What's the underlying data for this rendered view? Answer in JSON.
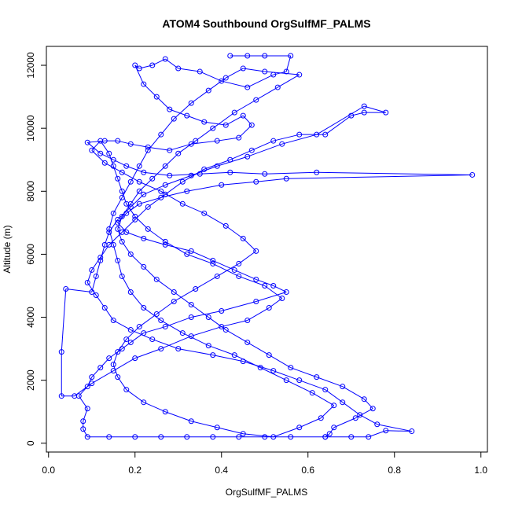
{
  "chart_data": {
    "type": "line",
    "title": "ATOM4 Southbound OrgSulfMF_PALMS",
    "xlabel": "OrgSulfMF_PALMS",
    "ylabel": "Altitude (m)",
    "xlim": [
      -0.005,
      1.015
    ],
    "ylim": [
      -280,
      12600
    ],
    "x_ticks": [
      "0.0",
      "0.2",
      "0.4",
      "0.6",
      "0.8",
      "1.0"
    ],
    "x_tick_values": [
      0,
      0.2,
      0.4,
      0.6,
      0.8,
      1.0
    ],
    "y_ticks": [
      "0",
      "2000",
      "4000",
      "6000",
      "8000",
      "10000",
      "12000"
    ],
    "y_tick_values": [
      0,
      2000,
      4000,
      6000,
      8000,
      10000,
      12000
    ],
    "grid": false,
    "marker": "open-circle",
    "series": [
      {
        "color": "#0000ff",
        "values": [
          [
            0.42,
            12300
          ],
          [
            0.46,
            12300
          ],
          [
            0.5,
            12300
          ],
          [
            0.56,
            12300
          ],
          [
            0.55,
            11800
          ],
          [
            0.52,
            11700
          ],
          [
            0.46,
            11300
          ],
          [
            0.4,
            11500
          ],
          [
            0.35,
            11800
          ],
          [
            0.3,
            11900
          ],
          [
            0.27,
            12200
          ],
          [
            0.24,
            12000
          ],
          [
            0.21,
            11900
          ],
          [
            0.2,
            12000
          ],
          [
            0.22,
            11400
          ],
          [
            0.25,
            11000
          ],
          [
            0.28,
            10600
          ],
          [
            0.32,
            10400
          ],
          [
            0.36,
            10200
          ],
          [
            0.41,
            10100
          ],
          [
            0.45,
            10400
          ],
          [
            0.47,
            10100
          ],
          [
            0.44,
            9700
          ],
          [
            0.39,
            9600
          ],
          [
            0.33,
            9500
          ],
          [
            0.28,
            9300
          ],
          [
            0.23,
            9400
          ],
          [
            0.19,
            9500
          ],
          [
            0.16,
            9600
          ],
          [
            0.13,
            9600
          ],
          [
            0.09,
            9550
          ],
          [
            0.12,
            9200
          ],
          [
            0.15,
            9000
          ],
          [
            0.18,
            8800
          ],
          [
            0.22,
            8600
          ],
          [
            0.28,
            8500
          ],
          [
            0.35,
            8550
          ],
          [
            0.42,
            8600
          ],
          [
            0.5,
            8550
          ],
          [
            0.62,
            8600
          ],
          [
            0.98,
            8520
          ],
          [
            0.55,
            8400
          ],
          [
            0.48,
            8300
          ],
          [
            0.4,
            8200
          ],
          [
            0.32,
            8000
          ],
          [
            0.26,
            7800
          ],
          [
            0.21,
            7600
          ],
          [
            0.18,
            7300
          ],
          [
            0.16,
            7000
          ],
          [
            0.18,
            6700
          ],
          [
            0.22,
            6500
          ],
          [
            0.27,
            6300
          ],
          [
            0.33,
            6100
          ],
          [
            0.38,
            5800
          ],
          [
            0.43,
            5500
          ],
          [
            0.48,
            5200
          ],
          [
            0.52,
            5000
          ],
          [
            0.55,
            4800
          ],
          [
            0.48,
            4500
          ],
          [
            0.4,
            4200
          ],
          [
            0.33,
            4000
          ],
          [
            0.27,
            3700
          ],
          [
            0.22,
            3500
          ],
          [
            0.19,
            3200
          ],
          [
            0.17,
            3000
          ],
          [
            0.14,
            2700
          ],
          [
            0.12,
            2400
          ],
          [
            0.1,
            2100
          ],
          [
            0.09,
            1800
          ],
          [
            0.07,
            1500
          ],
          [
            0.09,
            1100
          ],
          [
            0.08,
            700
          ],
          [
            0.08,
            450
          ],
          [
            0.09,
            200
          ],
          [
            0.14,
            200
          ],
          [
            0.2,
            200
          ],
          [
            0.26,
            200
          ],
          [
            0.32,
            200
          ],
          [
            0.38,
            200
          ],
          [
            0.44,
            200
          ],
          [
            0.5,
            200
          ],
          [
            0.56,
            200
          ],
          [
            0.64,
            200
          ],
          [
            0.7,
            200
          ],
          [
            0.74,
            200
          ],
          [
            0.78,
            400
          ],
          [
            0.84,
            380
          ],
          [
            0.76,
            600
          ],
          [
            0.72,
            900
          ],
          [
            0.68,
            1300
          ],
          [
            0.64,
            1700
          ],
          [
            0.58,
            2000
          ],
          [
            0.52,
            2300
          ],
          [
            0.45,
            2600
          ],
          [
            0.38,
            2800
          ],
          [
            0.3,
            3000
          ],
          [
            0.24,
            3300
          ],
          [
            0.19,
            3600
          ],
          [
            0.15,
            3900
          ],
          [
            0.13,
            4300
          ],
          [
            0.11,
            4700
          ],
          [
            0.09,
            5100
          ],
          [
            0.1,
            5500
          ],
          [
            0.12,
            5900
          ],
          [
            0.14,
            6300
          ],
          [
            0.17,
            6700
          ],
          [
            0.2,
            7100
          ],
          [
            0.23,
            7500
          ],
          [
            0.27,
            7900
          ],
          [
            0.31,
            8300
          ],
          [
            0.36,
            8700
          ],
          [
            0.42,
            9000
          ],
          [
            0.47,
            9300
          ],
          [
            0.52,
            9600
          ],
          [
            0.58,
            9800
          ],
          [
            0.64,
            9800
          ],
          [
            0.7,
            10400
          ],
          [
            0.73,
            10500
          ],
          [
            0.78,
            10500
          ],
          [
            0.73,
            10700
          ],
          [
            0.62,
            9800
          ],
          [
            0.54,
            9500
          ],
          [
            0.46,
            9100
          ],
          [
            0.39,
            8800
          ],
          [
            0.33,
            8500
          ],
          [
            0.27,
            8200
          ],
          [
            0.22,
            7900
          ],
          [
            0.19,
            7500
          ],
          [
            0.16,
            7100
          ],
          [
            0.14,
            6700
          ],
          [
            0.13,
            6300
          ],
          [
            0.12,
            5800
          ],
          [
            0.11,
            5300
          ],
          [
            0.1,
            4800
          ],
          [
            0.04,
            4900
          ],
          [
            0.03,
            2900
          ],
          [
            0.03,
            1500
          ],
          [
            0.06,
            1500
          ],
          [
            0.1,
            1900
          ],
          [
            0.15,
            2300
          ],
          [
            0.2,
            2700
          ],
          [
            0.26,
            3000
          ],
          [
            0.33,
            3400
          ],
          [
            0.4,
            3700
          ],
          [
            0.46,
            3900
          ],
          [
            0.51,
            4300
          ],
          [
            0.54,
            4600
          ],
          [
            0.5,
            5000
          ],
          [
            0.44,
            5300
          ],
          [
            0.38,
            5700
          ],
          [
            0.32,
            6000
          ],
          [
            0.27,
            6400
          ],
          [
            0.23,
            6800
          ],
          [
            0.2,
            7200
          ],
          [
            0.18,
            7600
          ],
          [
            0.17,
            8000
          ],
          [
            0.16,
            8400
          ],
          [
            0.15,
            8800
          ],
          [
            0.14,
            9200
          ],
          [
            0.12,
            9600
          ],
          [
            0.1,
            9300
          ],
          [
            0.13,
            8900
          ],
          [
            0.17,
            8600
          ],
          [
            0.21,
            8300
          ],
          [
            0.26,
            8000
          ],
          [
            0.31,
            7600
          ],
          [
            0.36,
            7300
          ],
          [
            0.41,
            6900
          ],
          [
            0.45,
            6500
          ],
          [
            0.48,
            6100
          ],
          [
            0.44,
            5700
          ],
          [
            0.39,
            5300
          ],
          [
            0.34,
            4900
          ],
          [
            0.29,
            4500
          ],
          [
            0.25,
            4100
          ],
          [
            0.21,
            3700
          ],
          [
            0.18,
            3300
          ],
          [
            0.16,
            2900
          ],
          [
            0.15,
            2500
          ],
          [
            0.16,
            2100
          ],
          [
            0.18,
            1700
          ],
          [
            0.22,
            1300
          ],
          [
            0.27,
            1000
          ],
          [
            0.33,
            700
          ],
          [
            0.39,
            500
          ],
          [
            0.45,
            300
          ],
          [
            0.52,
            200
          ],
          [
            0.58,
            500
          ],
          [
            0.63,
            800
          ],
          [
            0.66,
            1200
          ],
          [
            0.61,
            1600
          ],
          [
            0.55,
            2000
          ],
          [
            0.49,
            2400
          ],
          [
            0.43,
            2800
          ],
          [
            0.37,
            3100
          ],
          [
            0.31,
            3500
          ],
          [
            0.26,
            3900
          ],
          [
            0.22,
            4300
          ],
          [
            0.19,
            4800
          ],
          [
            0.17,
            5300
          ],
          [
            0.16,
            5800
          ],
          [
            0.15,
            6300
          ],
          [
            0.14,
            6800
          ],
          [
            0.15,
            7300
          ],
          [
            0.17,
            7800
          ],
          [
            0.19,
            8300
          ],
          [
            0.21,
            8800
          ],
          [
            0.23,
            9300
          ],
          [
            0.26,
            9800
          ],
          [
            0.29,
            10300
          ],
          [
            0.33,
            10800
          ],
          [
            0.37,
            11200
          ],
          [
            0.41,
            11600
          ],
          [
            0.45,
            11900
          ],
          [
            0.5,
            11800
          ],
          [
            0.58,
            11700
          ],
          [
            0.53,
            11300
          ],
          [
            0.48,
            10900
          ],
          [
            0.43,
            10500
          ],
          [
            0.38,
            10000
          ],
          [
            0.34,
            9600
          ],
          [
            0.3,
            9200
          ],
          [
            0.27,
            8800
          ],
          [
            0.24,
            8400
          ],
          [
            0.21,
            8000
          ],
          [
            0.19,
            7600
          ],
          [
            0.17,
            7200
          ],
          [
            0.16,
            6800
          ],
          [
            0.17,
            6400
          ],
          [
            0.19,
            6000
          ],
          [
            0.22,
            5600
          ],
          [
            0.25,
            5200
          ],
          [
            0.29,
            4800
          ],
          [
            0.33,
            4400
          ],
          [
            0.37,
            4000
          ],
          [
            0.41,
            3600
          ],
          [
            0.46,
            3200
          ],
          [
            0.51,
            2800
          ],
          [
            0.56,
            2400
          ],
          [
            0.62,
            2100
          ],
          [
            0.68,
            1800
          ],
          [
            0.73,
            1400
          ],
          [
            0.75,
            1100
          ],
          [
            0.71,
            800
          ],
          [
            0.66,
            500
          ],
          [
            0.65,
            300
          ],
          [
            0.64,
            200
          ]
        ]
      }
    ]
  }
}
